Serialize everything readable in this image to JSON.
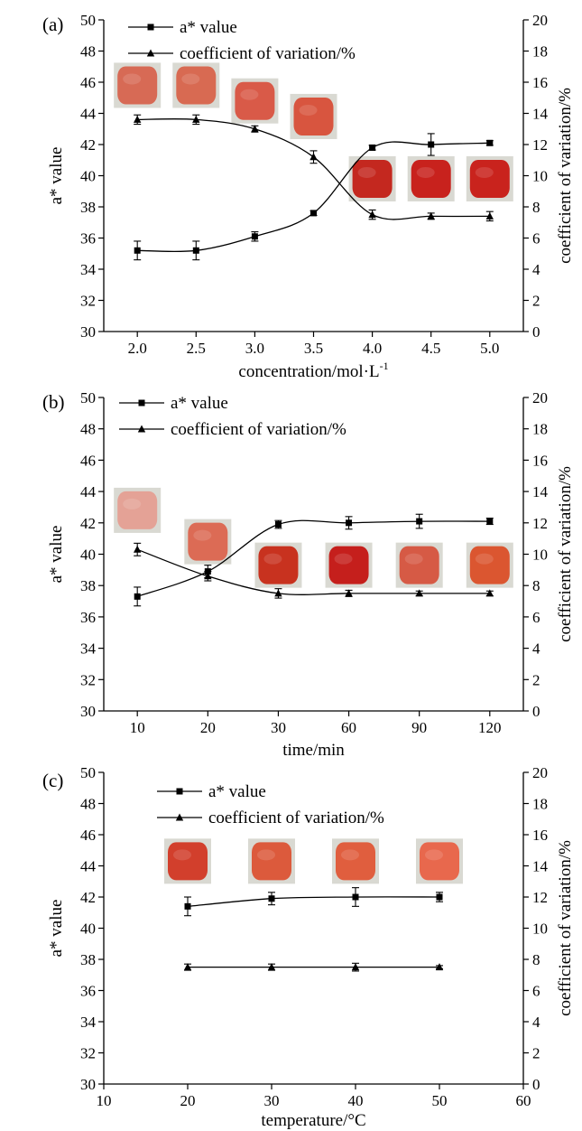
{
  "chart_data": [
    {
      "panel_label": "(a)",
      "type": "line",
      "x_scale": "categorical",
      "categories": [
        "2.0",
        "2.5",
        "3.0",
        "3.5",
        "4.0",
        "4.5",
        "5.0"
      ],
      "xlabel": "concentration/mol·L",
      "xlabel_sup": "-1",
      "ylabel": "a* value",
      "y2label": "coefficient of variation/%",
      "ylim": [
        30,
        50
      ],
      "yticks": [
        "30",
        "32",
        "34",
        "36",
        "38",
        "40",
        "42",
        "44",
        "46",
        "48",
        "50"
      ],
      "y2lim": [
        0,
        20
      ],
      "y2ticks": [
        "0",
        "2",
        "4",
        "6",
        "8",
        "10",
        "12",
        "14",
        "16",
        "18",
        "20"
      ],
      "legend_position": "top-left",
      "series": [
        {
          "name": "a* value",
          "marker": "square",
          "axis": "left",
          "values": [
            35.2,
            35.2,
            36.1,
            37.6,
            41.8,
            42.0,
            42.1
          ],
          "errors": [
            0.6,
            0.6,
            0.3,
            0.15,
            0.15,
            0.7,
            0.15
          ]
        },
        {
          "name": "coefficient of variation/%",
          "marker": "triangle",
          "axis": "right",
          "values": [
            13.6,
            13.6,
            13.0,
            11.2,
            7.5,
            7.4,
            7.4
          ],
          "errors": [
            0.3,
            0.3,
            0.2,
            0.4,
            0.3,
            0.2,
            0.3
          ]
        }
      ],
      "sample_photos": [
        {
          "x": "2.0",
          "level": 45.8,
          "color": "#d76a55"
        },
        {
          "x": "2.5",
          "level": 45.8,
          "color": "#d86a52"
        },
        {
          "x": "3.0",
          "level": 44.8,
          "color": "#d95a48"
        },
        {
          "x": "3.5",
          "level": 43.8,
          "color": "#d8553f"
        },
        {
          "x": "4.0",
          "level": 39.8,
          "color": "#c4281f"
        },
        {
          "x": "4.5",
          "level": 39.8,
          "color": "#c8221d"
        },
        {
          "x": "5.0",
          "level": 39.8,
          "color": "#c9231d"
        }
      ]
    },
    {
      "panel_label": "(b)",
      "type": "line",
      "x_scale": "categorical",
      "categories": [
        "10",
        "20",
        "30",
        "60",
        "90",
        "120"
      ],
      "xlabel": "time/min",
      "ylabel": "a* value",
      "y2label": "coefficient of variation/%",
      "ylim": [
        30,
        50
      ],
      "yticks": [
        "30",
        "32",
        "34",
        "36",
        "38",
        "40",
        "42",
        "44",
        "46",
        "48",
        "50"
      ],
      "y2lim": [
        0,
        20
      ],
      "y2ticks": [
        "0",
        "2",
        "4",
        "6",
        "8",
        "10",
        "12",
        "14",
        "16",
        "18",
        "20"
      ],
      "legend_position": "top-left",
      "series": [
        {
          "name": "a* value",
          "marker": "square",
          "axis": "left",
          "values": [
            37.3,
            38.9,
            41.9,
            42.0,
            42.1,
            42.1
          ],
          "errors": [
            0.6,
            0.4,
            0.25,
            0.4,
            0.45,
            0.2
          ]
        },
        {
          "name": "coefficient of variation/%",
          "marker": "triangle",
          "axis": "right",
          "values": [
            10.3,
            8.6,
            7.5,
            7.5,
            7.5,
            7.5
          ],
          "errors": [
            0.4,
            0.3,
            0.3,
            0.2,
            0.15,
            0.15
          ]
        }
      ],
      "sample_photos": [
        {
          "x": "10",
          "level": 42.8,
          "color": "#e4a296"
        },
        {
          "x": "20",
          "level": 40.8,
          "color": "#dc6b55"
        },
        {
          "x": "30",
          "level": 39.3,
          "color": "#c8321f"
        },
        {
          "x": "60",
          "level": 39.3,
          "color": "#c51f1c"
        },
        {
          "x": "90",
          "level": 39.3,
          "color": "#d65a45"
        },
        {
          "x": "120",
          "level": 39.3,
          "color": "#db5630"
        }
      ]
    },
    {
      "panel_label": "(c)",
      "type": "line",
      "x_scale": "linear",
      "xlim": [
        10,
        60
      ],
      "xticks": [
        "10",
        "20",
        "30",
        "40",
        "50",
        "60"
      ],
      "x": [
        20,
        30,
        40,
        50
      ],
      "xlabel": "temperature/°C",
      "ylabel": "a* value",
      "y2label": "coefficient of variation/%",
      "ylim": [
        30,
        50
      ],
      "yticks": [
        "30",
        "32",
        "34",
        "36",
        "38",
        "40",
        "42",
        "44",
        "46",
        "48",
        "50"
      ],
      "y2lim": [
        0,
        20
      ],
      "y2ticks": [
        "0",
        "2",
        "4",
        "6",
        "8",
        "10",
        "12",
        "14",
        "16",
        "18",
        "20"
      ],
      "legend_position": "top-left",
      "series": [
        {
          "name": "a* value",
          "marker": "square",
          "axis": "left",
          "values": [
            41.4,
            41.9,
            42.0,
            42.0
          ],
          "errors": [
            0.6,
            0.4,
            0.6,
            0.3
          ]
        },
        {
          "name": "coefficient of variation/%",
          "marker": "triangle",
          "axis": "right",
          "values": [
            7.5,
            7.5,
            7.5,
            7.5
          ],
          "errors": [
            0.2,
            0.2,
            0.25,
            0.1
          ]
        }
      ],
      "sample_photos": [
        {
          "x": 20,
          "level": 44.3,
          "color": "#d23f2c"
        },
        {
          "x": 30,
          "level": 44.3,
          "color": "#dc5a3c"
        },
        {
          "x": 40,
          "level": 44.3,
          "color": "#e05e3e"
        },
        {
          "x": 50,
          "level": 44.3,
          "color": "#e8684d"
        }
      ]
    }
  ]
}
